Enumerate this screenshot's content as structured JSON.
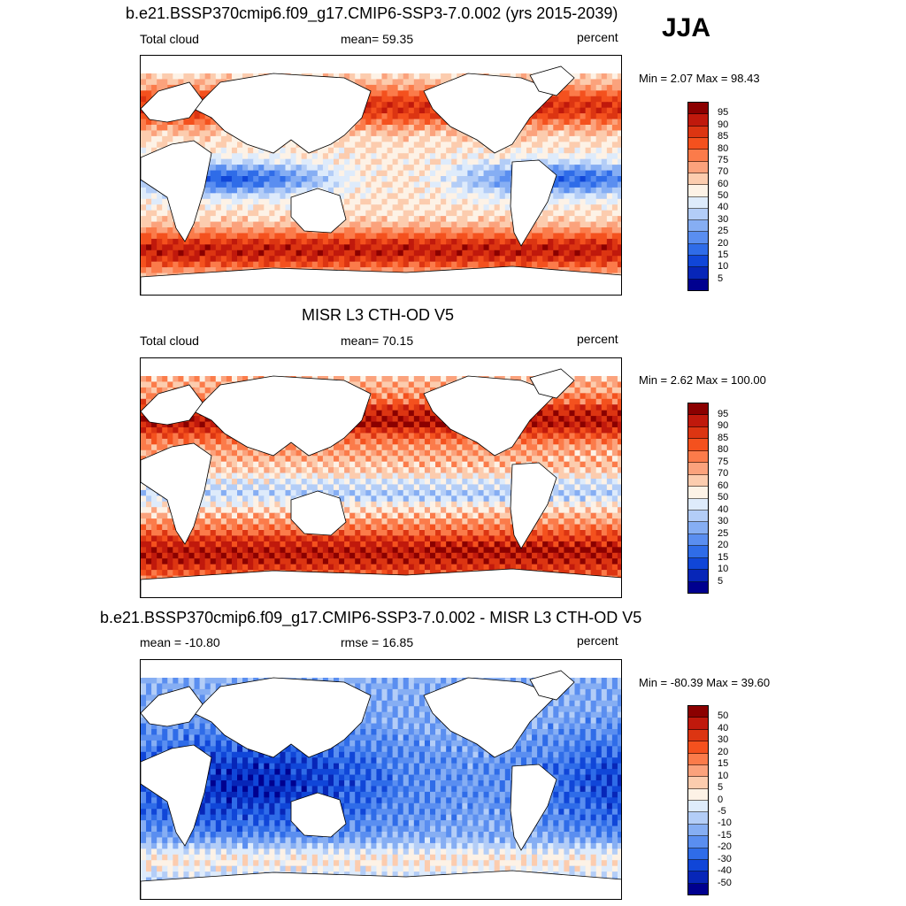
{
  "season": "JJA",
  "chart_data": [
    {
      "type": "heatmap",
      "title": "b.e21.BSSP370cmip6.f09_g17.CMIP6-SSP3-7.0.002 (yrs 2015-2039)",
      "left_label": "Total cloud",
      "center_label": "mean=  59.35",
      "right_label": "percent",
      "min_max": "Min =   2.07 Max =  98.43",
      "mean": 59.35,
      "min": 2.07,
      "max": 98.43,
      "colorbar_labels": [
        "95",
        "90",
        "85",
        "80",
        "75",
        "70",
        "60",
        "50",
        "40",
        "30",
        "25",
        "20",
        "15",
        "10",
        "5"
      ],
      "colorbar_colors": [
        "#8b0000",
        "#c0190c",
        "#dc3512",
        "#f4511e",
        "#fb7b4a",
        "#fba27c",
        "#fcccae",
        "#fdf2e6",
        "#deebfb",
        "#b3cdf7",
        "#86aef3",
        "#5a8ef0",
        "#2f6ce8",
        "#1046d8",
        "#0726b8",
        "#00008f"
      ]
    },
    {
      "type": "heatmap",
      "title": "MISR L3 CTH-OD V5",
      "left_label": "Total cloud",
      "center_label": "mean=  70.15",
      "right_label": "percent",
      "min_max": "Min =   2.62 Max = 100.00",
      "mean": 70.15,
      "min": 2.62,
      "max": 100.0,
      "colorbar_labels": [
        "95",
        "90",
        "85",
        "80",
        "75",
        "70",
        "60",
        "50",
        "40",
        "30",
        "25",
        "20",
        "15",
        "10",
        "5"
      ],
      "colorbar_colors": [
        "#8b0000",
        "#c0190c",
        "#dc3512",
        "#f4511e",
        "#fb7b4a",
        "#fba27c",
        "#fcccae",
        "#fdf2e6",
        "#deebfb",
        "#b3cdf7",
        "#86aef3",
        "#5a8ef0",
        "#2f6ce8",
        "#1046d8",
        "#0726b8",
        "#00008f"
      ]
    },
    {
      "type": "heatmap",
      "title": "b.e21.BSSP370cmip6.f09_g17.CMIP6-SSP3-7.0.002 - MISR L3 CTH-OD V5",
      "left_label": "mean = -10.80",
      "center_label": "rmse =  16.85",
      "right_label": "percent",
      "min_max": "Min = -80.39 Max =  39.60",
      "mean": -10.8,
      "rmse": 16.85,
      "min": -80.39,
      "max": 39.6,
      "colorbar_labels": [
        "50",
        "40",
        "30",
        "20",
        "15",
        "10",
        "5",
        "0",
        "-5",
        "-10",
        "-15",
        "-20",
        "-30",
        "-40",
        "-50"
      ],
      "colorbar_colors": [
        "#8b0000",
        "#c0190c",
        "#dc3512",
        "#f4511e",
        "#fb7b4a",
        "#fba27c",
        "#fcccae",
        "#fdf2e6",
        "#deebfb",
        "#b3cdf7",
        "#86aef3",
        "#5a8ef0",
        "#2f6ce8",
        "#1046d8",
        "#0726b8",
        "#00008f"
      ]
    }
  ]
}
